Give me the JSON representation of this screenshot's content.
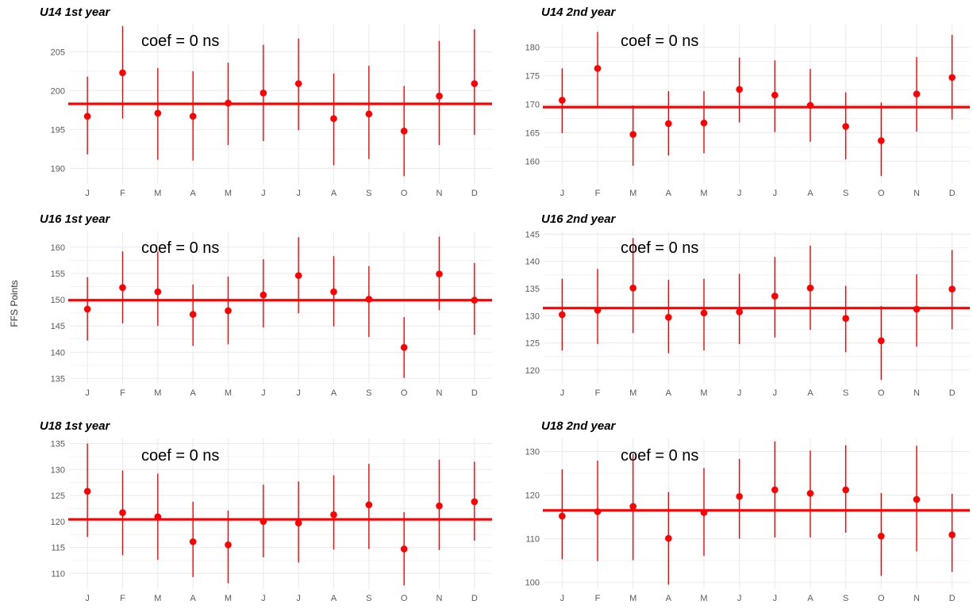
{
  "figure": {
    "ylabel": "FFS Points",
    "x_categories": [
      "J",
      "F",
      "M",
      "A",
      "M",
      "J",
      "J",
      "A",
      "S",
      "O",
      "N",
      "D"
    ],
    "colors": {
      "points": "#ff0000",
      "bars": "#ff0000",
      "hline": "#ff0000",
      "grid": "#ebebeb"
    }
  },
  "chart_data": [
    {
      "type": "scatter",
      "title": "U14 1st year",
      "annotation": "coef = 0 ns",
      "categories": [
        "J",
        "F",
        "M",
        "A",
        "M",
        "J",
        "J",
        "A",
        "S",
        "O",
        "N",
        "D"
      ],
      "ylim": [
        188,
        208.5
      ],
      "yticks": [
        190,
        195,
        200,
        205
      ],
      "hline": 198.3,
      "series": [
        {
          "values": [
            196.7,
            202.3,
            197.1,
            196.7,
            198.4,
            199.7,
            200.9,
            196.4,
            197.0,
            194.8,
            199.3,
            200.9
          ],
          "lower": [
            191.8,
            196.4,
            191.1,
            191.0,
            193.0,
            193.5,
            194.9,
            190.4,
            191.2,
            189.0,
            193.0,
            194.3
          ],
          "upper": [
            201.8,
            208.3,
            202.9,
            202.5,
            203.6,
            205.9,
            206.7,
            202.2,
            203.2,
            200.6,
            206.4,
            207.9
          ]
        }
      ],
      "grid": true
    },
    {
      "type": "scatter",
      "title": "U14 2nd year",
      "annotation": "coef = 0 ns",
      "categories": [
        "J",
        "F",
        "M",
        "A",
        "M",
        "J",
        "J",
        "A",
        "S",
        "O",
        "N",
        "D"
      ],
      "ylim": [
        156,
        184
      ],
      "yticks": [
        160,
        165,
        170,
        175,
        180
      ],
      "hline": 169.5,
      "series": [
        {
          "values": [
            170.7,
            176.3,
            164.7,
            166.6,
            166.7,
            172.6,
            171.6,
            169.8,
            166.1,
            163.6,
            171.8,
            174.7
          ],
          "lower": [
            164.9,
            169.5,
            159.2,
            161.0,
            161.4,
            166.8,
            165.1,
            163.4,
            160.3,
            157.4,
            165.2,
            167.3
          ],
          "upper": [
            176.3,
            182.7,
            169.8,
            172.3,
            172.3,
            178.2,
            177.7,
            176.2,
            172.1,
            170.3,
            178.3,
            182.2
          ]
        }
      ],
      "grid": true
    },
    {
      "type": "scatter",
      "title": "U16 1st year",
      "annotation": "coef = 0 ns",
      "categories": [
        "J",
        "F",
        "M",
        "A",
        "M",
        "J",
        "J",
        "A",
        "S",
        "O",
        "N",
        "D"
      ],
      "ylim": [
        134,
        163
      ],
      "yticks": [
        135,
        140,
        145,
        150,
        155,
        160
      ],
      "hline": 149.9,
      "series": [
        {
          "values": [
            148.2,
            152.3,
            151.5,
            147.2,
            147.9,
            150.9,
            154.6,
            151.5,
            150.1,
            140.9,
            154.9,
            149.9
          ],
          "lower": [
            142.2,
            145.5,
            145.0,
            141.2,
            141.5,
            144.7,
            147.4,
            144.9,
            142.9,
            135.1,
            148.0,
            143.3
          ],
          "upper": [
            154.3,
            159.2,
            159.2,
            152.9,
            154.4,
            157.7,
            161.9,
            158.3,
            156.4,
            146.7,
            162.0,
            157.0
          ]
        }
      ],
      "grid": true
    },
    {
      "type": "scatter",
      "title": "U16 2nd year",
      "annotation": "coef = 0 ns",
      "categories": [
        "J",
        "F",
        "M",
        "A",
        "M",
        "J",
        "J",
        "A",
        "S",
        "O",
        "N",
        "D"
      ],
      "ylim": [
        117.5,
        145.5
      ],
      "yticks": [
        120,
        125,
        130,
        135,
        140,
        145
      ],
      "hline": 131.4,
      "series": [
        {
          "values": [
            130.2,
            131.0,
            135.1,
            129.7,
            130.5,
            130.7,
            133.6,
            135.1,
            129.5,
            125.4,
            131.2,
            134.9
          ],
          "lower": [
            123.6,
            124.8,
            126.8,
            123.1,
            123.6,
            124.8,
            126.0,
            127.4,
            123.3,
            118.2,
            124.3,
            127.5
          ],
          "upper": [
            136.8,
            138.6,
            144.3,
            136.6,
            136.8,
            137.7,
            140.8,
            142.9,
            135.5,
            131.8,
            137.6,
            142.1
          ]
        }
      ],
      "grid": true
    },
    {
      "type": "scatter",
      "title": "U18 1st year",
      "annotation": "coef = 0 ns",
      "categories": [
        "J",
        "F",
        "M",
        "A",
        "M",
        "J",
        "J",
        "A",
        "S",
        "O",
        "N",
        "D"
      ],
      "ylim": [
        107,
        136
      ],
      "yticks": [
        110,
        115,
        120,
        125,
        130,
        135
      ],
      "hline": 120.4,
      "series": [
        {
          "values": [
            125.8,
            121.7,
            120.9,
            116.1,
            115.5,
            120.0,
            119.7,
            121.3,
            123.2,
            114.7,
            123.0,
            123.8
          ],
          "lower": [
            117.0,
            113.5,
            112.6,
            109.3,
            108.1,
            113.1,
            112.1,
            114.6,
            114.7,
            107.7,
            114.5,
            116.3
          ],
          "upper": [
            135.0,
            129.8,
            129.2,
            123.8,
            122.1,
            127.1,
            127.7,
            128.9,
            131.1,
            121.8,
            131.9,
            131.5
          ]
        }
      ],
      "grid": true
    },
    {
      "type": "scatter",
      "title": "U18 2nd year",
      "annotation": "coef = 0 ns",
      "categories": [
        "J",
        "F",
        "M",
        "A",
        "M",
        "J",
        "J",
        "A",
        "S",
        "O",
        "N",
        "D"
      ],
      "ylim": [
        98.5,
        133
      ],
      "yticks": [
        100,
        110,
        120,
        130
      ],
      "hline": 116.5,
      "series": [
        {
          "values": [
            115.2,
            116.2,
            117.4,
            110.1,
            116.0,
            119.7,
            121.2,
            120.4,
            121.2,
            110.6,
            119.0,
            110.9
          ],
          "lower": [
            105.3,
            104.9,
            105.1,
            99.5,
            106.1,
            110.0,
            110.3,
            110.3,
            111.4,
            101.5,
            107.1,
            102.4
          ],
          "upper": [
            125.9,
            127.9,
            129.4,
            120.7,
            126.2,
            128.3,
            132.3,
            130.2,
            131.4,
            120.5,
            131.3,
            120.3
          ]
        }
      ],
      "grid": true
    }
  ]
}
